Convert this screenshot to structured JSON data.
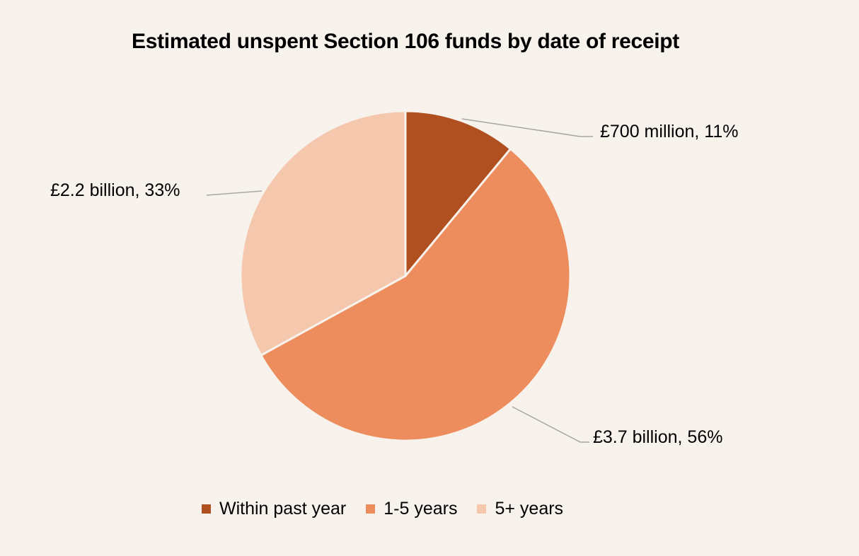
{
  "chart_data": {
    "type": "pie",
    "title": "Estimated unspent Section 106 funds by date of receipt",
    "categories": [
      "Within past year",
      "1-5 years",
      "5+ years"
    ],
    "values": [
      0.7,
      3.7,
      2.2
    ],
    "unit": "£ billion",
    "percentages": [
      11,
      56,
      33
    ],
    "data_labels": [
      "£700 million, 11%",
      "£3.7 billion, 56%",
      "£2.2 billion, 33%"
    ],
    "colors": [
      "#b04f1f",
      "#ed8c5c",
      "#f5c7ad"
    ],
    "start_angle": "12 o'clock",
    "direction": "clockwise",
    "legend_position": "bottom"
  },
  "title": "Estimated unspent Section 106 funds by date of receipt",
  "labels": {
    "within_past_year": "£700 million, 11%",
    "one_to_five": "£3.7 billion, 56%",
    "five_plus": "£2.2 billion, 33%"
  },
  "legend": [
    {
      "label": "Within past year",
      "color": "#b04f1f"
    },
    {
      "label": "1-5 years",
      "color": "#ed8c5c"
    },
    {
      "label": "5+ years",
      "color": "#f5c7ad"
    }
  ],
  "colors": {
    "background": "#f8f2ec",
    "leader_line": "#a6a6a6",
    "slice_border": "#f8f2ec"
  }
}
